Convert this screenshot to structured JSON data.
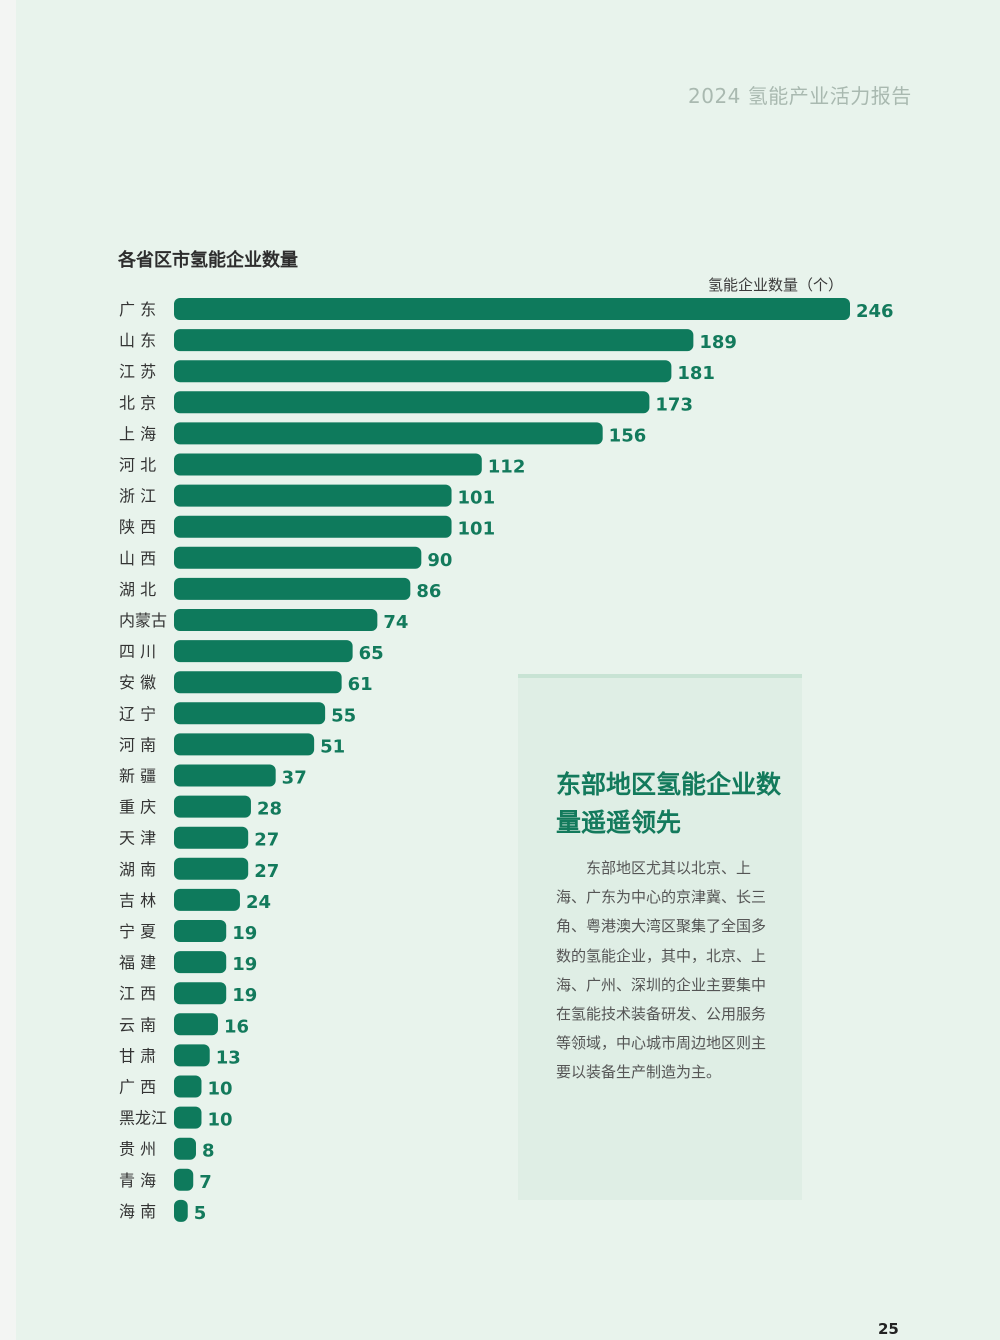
{
  "header": {
    "report_title": "2024 氢能产业活力报告"
  },
  "chart_title": "各省区市氢能企业数量",
  "callout": {
    "heading": "东部地区氢能企业数量遥遥领先",
    "body": "东部地区尤其以北京、上海、广东为中心的京津冀、长三角、粤港澳大湾区聚集了全国多数的氢能企业，其中，北京、上海、广州、深圳的企业主要集中在氢能技术装备研发、公用服务等领域，中心城市周边地区则主要以装备生产制造为主。"
  },
  "page_number": "25",
  "chart_data": {
    "type": "bar",
    "orientation": "horizontal",
    "title": "各省区市氢能企业数量",
    "value_axis_label": "氢能企业数量（个）",
    "categories": [
      "广 东",
      "山 东",
      "江 苏",
      "北 京",
      "上 海",
      "河 北",
      "浙 江",
      "陕 西",
      "山 西",
      "湖 北",
      "内蒙古",
      "四 川",
      "安 徽",
      "辽 宁",
      "河 南",
      "新 疆",
      "重 庆",
      "天 津",
      "湖 南",
      "吉 林",
      "宁 夏",
      "福 建",
      "江 西",
      "云 南",
      "甘 肃",
      "广 西",
      "黑龙江",
      "贵 州",
      "青 海",
      "海 南"
    ],
    "values": [
      246,
      189,
      181,
      173,
      156,
      112,
      101,
      101,
      90,
      86,
      74,
      65,
      61,
      55,
      51,
      37,
      28,
      27,
      27,
      24,
      19,
      19,
      19,
      16,
      13,
      10,
      10,
      8,
      7,
      5
    ],
    "grid": false,
    "legend": "none",
    "colors": {
      "bar": "#0e7a5c",
      "value_label": "#137a5c"
    }
  }
}
